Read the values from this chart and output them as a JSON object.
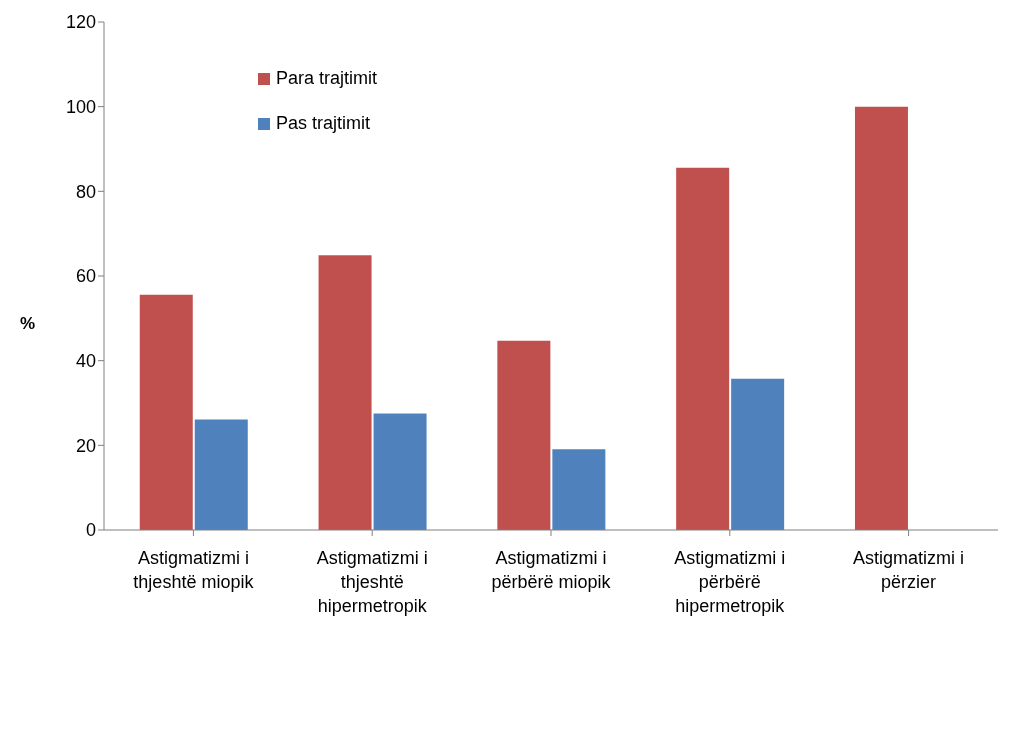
{
  "chart_data": {
    "type": "bar",
    "ylabel": "%",
    "categories": [
      "Astigmatizmi i thjeshtë miopik",
      "Astigmatizmi i thjeshtë hipermetropik",
      "Astigmatizmi i përbërë miopik",
      "Astigmatizmi i përbërë hipermetropik",
      "Astigmatizmi i përzier"
    ],
    "series": [
      {
        "name": "Para trajtimit",
        "color": "#c0504d",
        "values": [
          55.6,
          64.9,
          44.7,
          85.6,
          100
        ]
      },
      {
        "name": "Pas trajtimit",
        "color": "#4f81bd",
        "values": [
          26.1,
          27.5,
          19.1,
          35.7,
          null
        ]
      }
    ],
    "ylim": [
      0,
      120
    ],
    "yticks": [
      0,
      20,
      40,
      60,
      80,
      100,
      120
    ],
    "grid": false,
    "legend": "top left"
  }
}
